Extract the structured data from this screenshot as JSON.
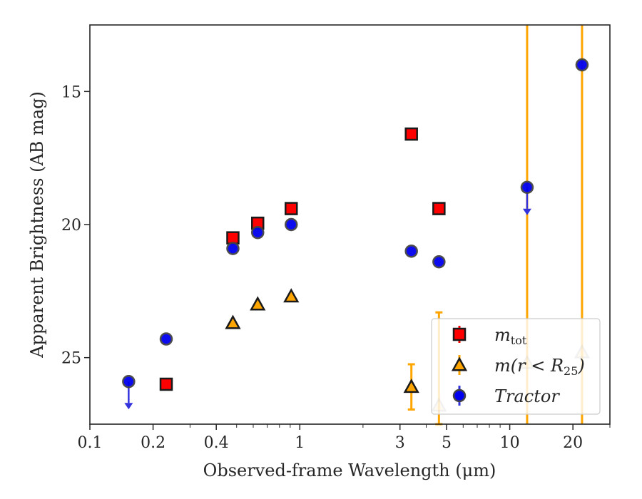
{
  "chart_data": {
    "type": "scatter",
    "title": "",
    "xlabel": "Observed-frame Wavelength (μm)",
    "ylabel": "Apparent Brightness (AB mag)",
    "xscale": "log",
    "xlim": [
      0.1,
      30
    ],
    "ylim": [
      27.5,
      12.5
    ],
    "y_inverted": true,
    "grid": false,
    "legend_position": "lower-right",
    "x_ticks": [
      {
        "value": 0.1,
        "label": "0.1"
      },
      {
        "value": 0.2,
        "label": "0.2"
      },
      {
        "value": 0.4,
        "label": "0.4"
      },
      {
        "value": 1,
        "label": "1"
      },
      {
        "value": 3,
        "label": "3"
      },
      {
        "value": 5,
        "label": "5"
      },
      {
        "value": 10,
        "label": "10"
      },
      {
        "value": 20,
        "label": "20"
      }
    ],
    "y_ticks": [
      {
        "value": 15,
        "label": "15"
      },
      {
        "value": 20,
        "label": "20"
      },
      {
        "value": 25,
        "label": "25"
      }
    ],
    "series": [
      {
        "name": "m_tot",
        "marker": "square",
        "color": "#ff0000",
        "edge_color": "#1a1a1a",
        "points": [
          {
            "x": 0.231,
            "y": 26.0
          },
          {
            "x": 0.48,
            "y": 20.5
          },
          {
            "x": 0.63,
            "y": 19.95
          },
          {
            "x": 0.91,
            "y": 19.4
          },
          {
            "x": 3.4,
            "y": 16.6
          },
          {
            "x": 4.6,
            "y": 19.4
          }
        ]
      },
      {
        "name": "m(r<R25)",
        "marker": "triangle",
        "color": "#ffa500",
        "edge_color": "#1a1a1a",
        "points": [
          {
            "x": 0.48,
            "y": 23.7,
            "faded": false
          },
          {
            "x": 0.63,
            "y": 23.0,
            "faded": false
          },
          {
            "x": 0.91,
            "y": 22.7,
            "faded": false
          },
          {
            "x": 3.4,
            "y": 26.1,
            "yerr": 0.85,
            "faded": false
          },
          {
            "x": 4.6,
            "y": 26.8,
            "yerr": 3.5,
            "faded": true
          },
          {
            "x": 12.1,
            "y": 25.2,
            "yerr": 999,
            "faded": true
          },
          {
            "x": 22.1,
            "y": 24.8,
            "yerr": 999,
            "faded": true
          }
        ]
      },
      {
        "name": "Tractor",
        "marker": "circle",
        "color": "#0000ee",
        "edge_color": "#444444",
        "arrow_color": "#3333dd",
        "points": [
          {
            "x": 0.153,
            "y": 25.9,
            "upper_limit": true
          },
          {
            "x": 0.231,
            "y": 24.3
          },
          {
            "x": 0.48,
            "y": 20.9
          },
          {
            "x": 0.63,
            "y": 20.3
          },
          {
            "x": 0.91,
            "y": 20.0
          },
          {
            "x": 3.4,
            "y": 21.0
          },
          {
            "x": 4.6,
            "y": 21.4
          },
          {
            "x": 12.1,
            "y": 18.6,
            "upper_limit": true
          },
          {
            "x": 22.1,
            "y": 14.0
          }
        ]
      }
    ],
    "legend": [
      {
        "label_main": "m",
        "label_sub": "tot",
        "label_rest": "",
        "marker": "square"
      },
      {
        "label_main": "m(r < R",
        "label_sub": "25",
        "label_rest": ")",
        "marker": "triangle"
      },
      {
        "label_main": "Tractor",
        "label_sub": "",
        "label_rest": "",
        "marker": "circle"
      }
    ]
  }
}
